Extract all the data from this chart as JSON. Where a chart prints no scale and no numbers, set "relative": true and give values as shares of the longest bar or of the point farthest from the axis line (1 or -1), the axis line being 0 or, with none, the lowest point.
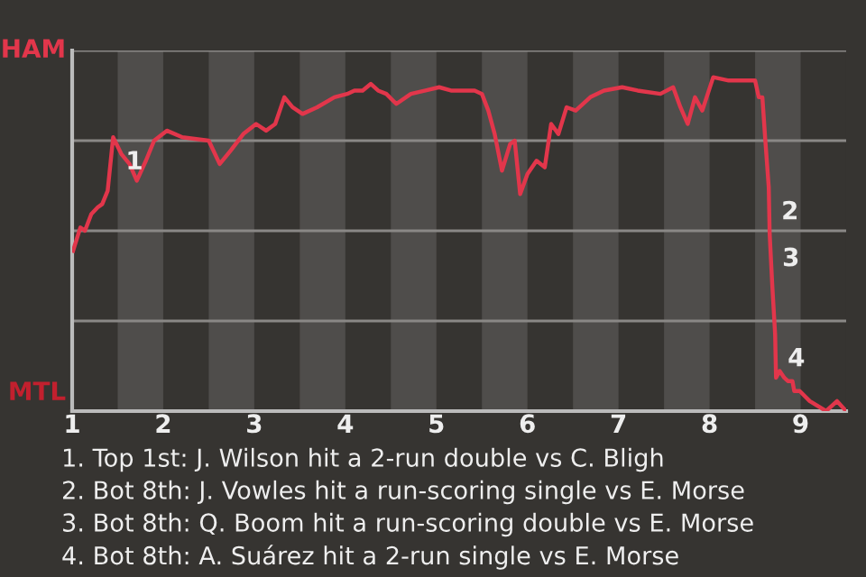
{
  "chart_data": {
    "type": "line",
    "relative": true,
    "xlim": [
      1,
      9.5
    ],
    "xticks": [
      1,
      2,
      3,
      4,
      5,
      6,
      7,
      8,
      9
    ],
    "grid": false,
    "marker": "none",
    "line_style": "solid",
    "ref_lines": [
      {
        "axis": "y",
        "value": 0.27,
        "label": null,
        "color": "#8a8886"
      },
      {
        "axis": "y",
        "value": 0.54,
        "label": null,
        "color": "#8a8886"
      },
      {
        "axis": "y",
        "value": 0.81,
        "label": null,
        "color": "#8a8886"
      },
      {
        "axis": "y",
        "value": 1.08,
        "label": null,
        "color": "#8a8886"
      }
    ],
    "bands": [
      {
        "axis": "x",
        "from": 1.5,
        "to": 2,
        "label": null,
        "color": "#4f4d4b"
      },
      {
        "axis": "x",
        "from": 2.5,
        "to": 3,
        "label": null,
        "color": "#4f4d4b"
      },
      {
        "axis": "x",
        "from": 3.5,
        "to": 4,
        "label": null,
        "color": "#4f4d4b"
      },
      {
        "axis": "x",
        "from": 4.5,
        "to": 5,
        "label": null,
        "color": "#4f4d4b"
      },
      {
        "axis": "x",
        "from": 5.5,
        "to": 6,
        "label": null,
        "color": "#4f4d4b"
      },
      {
        "axis": "x",
        "from": 6.5,
        "to": 7,
        "label": null,
        "color": "#4f4d4b"
      },
      {
        "axis": "x",
        "from": 7.5,
        "to": 8,
        "label": null,
        "color": "#4f4d4b"
      },
      {
        "axis": "x",
        "from": 8.5,
        "to": 9,
        "label": null,
        "color": "#4f4d4b"
      }
    ],
    "series": [
      {
        "color": "#e2364b",
        "x": [
          1.01,
          1.09,
          1.14,
          1.21,
          1.28,
          1.33,
          1.39,
          1.45,
          1.54,
          1.63,
          1.71,
          1.81,
          1.9,
          2.04,
          2.21,
          2.5,
          2.62,
          2.74,
          2.88,
          3.02,
          3.13,
          3.23,
          3.33,
          3.42,
          3.53,
          3.69,
          3.88,
          4.02,
          4.1,
          4.19,
          4.28,
          4.36,
          4.45,
          4.56,
          4.72,
          4.88,
          5.03,
          5.16,
          5.42,
          5.5,
          5.57,
          5.64,
          5.72,
          5.81,
          5.86,
          5.92,
          6.0,
          6.1,
          6.19,
          6.26,
          6.34,
          6.43,
          6.53,
          6.69,
          6.84,
          7.04,
          7.21,
          7.46,
          7.6,
          7.68,
          7.76,
          7.84,
          7.92,
          8.04,
          8.21,
          8.5,
          8.54,
          8.58,
          8.61,
          8.65,
          8.66,
          8.69,
          8.72,
          8.73,
          8.77,
          8.82,
          8.86,
          8.91,
          8.93,
          8.99,
          9.1,
          9.28,
          9.4,
          9.5
        ],
        "values": [
          0.48,
          0.55,
          0.54,
          0.59,
          0.61,
          0.62,
          0.66,
          0.82,
          0.77,
          0.74,
          0.69,
          0.75,
          0.81,
          0.84,
          0.82,
          0.81,
          0.74,
          0.78,
          0.83,
          0.86,
          0.84,
          0.86,
          0.94,
          0.91,
          0.89,
          0.91,
          0.94,
          0.95,
          0.96,
          0.96,
          0.98,
          0.96,
          0.95,
          0.92,
          0.95,
          0.96,
          0.97,
          0.96,
          0.96,
          0.95,
          0.9,
          0.83,
          0.72,
          0.8,
          0.81,
          0.65,
          0.71,
          0.75,
          0.73,
          0.86,
          0.83,
          0.91,
          0.9,
          0.94,
          0.96,
          0.97,
          0.96,
          0.95,
          0.97,
          0.91,
          0.86,
          0.94,
          0.9,
          1,
          0.99,
          0.99,
          0.94,
          0.94,
          0.82,
          0.67,
          0.53,
          0.37,
          0.23,
          0.1,
          0.12,
          0.1,
          0.09,
          0.09,
          0.06,
          0.06,
          0.03,
          0,
          0.03,
          0
        ]
      }
    ],
    "annotations": [
      "HAM",
      "MTL",
      {
        "text": "1",
        "x": 1.45,
        "y": 0.82
      },
      {
        "text": "2",
        "x": 8.65,
        "y": 0.67
      },
      {
        "text": "3",
        "x": 8.66,
        "y": 0.53
      },
      {
        "text": "4",
        "x": 8.72,
        "y": 0.23
      },
      "1. Top 1st: J. Wilson hit a 2-run double vs C. Bligh",
      "2. Bot 8th: J. Vowles hit a run-scoring single vs E. Morse",
      "3. Bot 8th: Q. Boom hit a run-scoring double vs E. Morse",
      "4. Bot 8th: A. Suárez hit a 2-run single vs E. Morse"
    ]
  }
}
